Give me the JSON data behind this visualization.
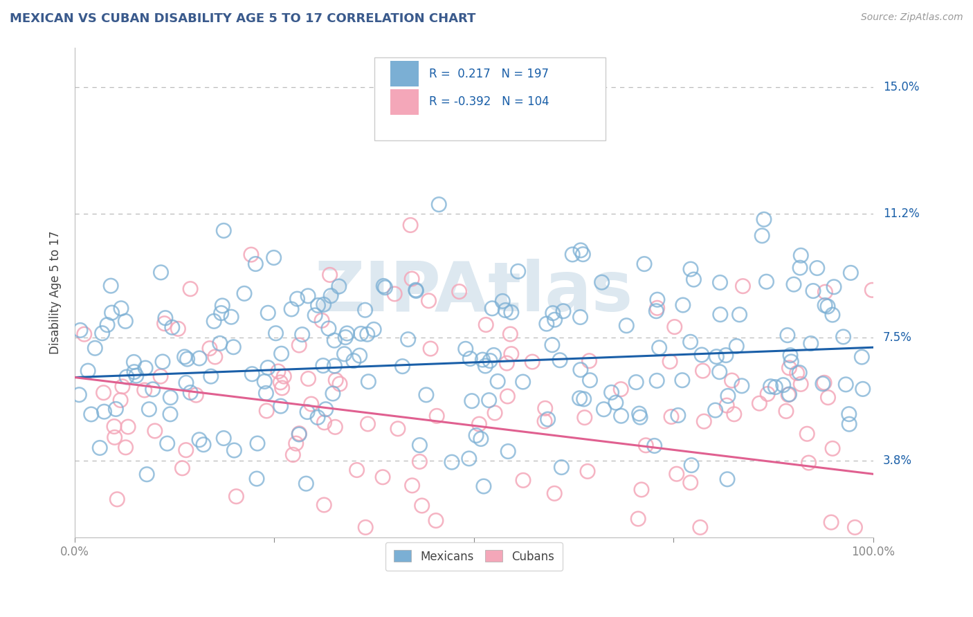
{
  "title": "MEXICAN VS CUBAN DISABILITY AGE 5 TO 17 CORRELATION CHART",
  "source_text": "Source: ZipAtlas.com",
  "ylabel": "Disability Age 5 to 17",
  "ytick_labels": [
    "3.8%",
    "7.5%",
    "11.2%",
    "15.0%"
  ],
  "ytick_values": [
    0.038,
    0.075,
    0.112,
    0.15
  ],
  "xlim": [
    0.0,
    1.0
  ],
  "ylim": [
    0.015,
    0.162
  ],
  "mexican_R": 0.217,
  "mexican_N": 197,
  "cuban_R": -0.392,
  "cuban_N": 104,
  "mexican_color": "#7bafd4",
  "cuban_color": "#f4a7b9",
  "mexican_line_color": "#1a5fa8",
  "cuban_line_color": "#e06090",
  "background_color": "#ffffff",
  "grid_color": "#bbbbbb",
  "title_color": "#3a5a8c",
  "watermark_color": "#dde8f0",
  "watermark": "ZIPAtlas",
  "mexican_seed": 42,
  "cuban_seed": 77,
  "mex_line_start_y": 0.063,
  "mex_line_end_y": 0.072,
  "cub_line_start_y": 0.063,
  "cub_line_end_y": 0.034
}
